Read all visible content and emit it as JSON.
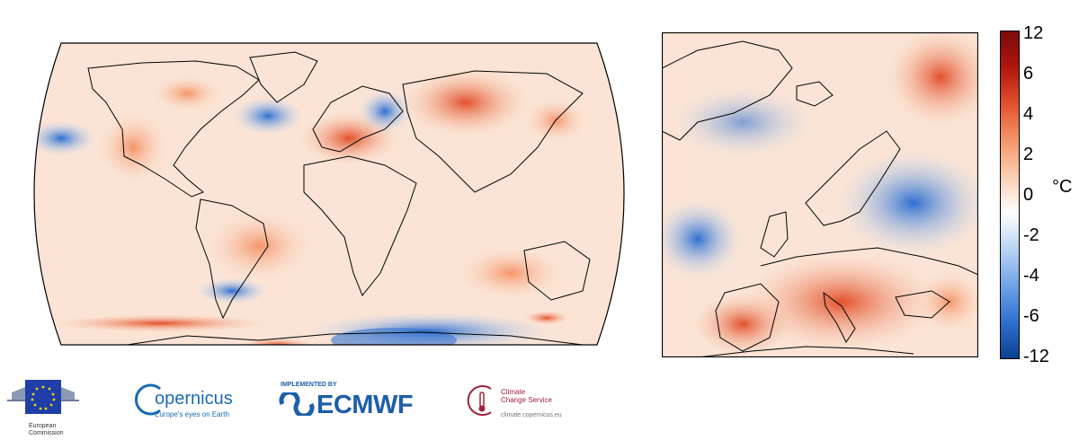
{
  "colorbar": {
    "ticks": [
      "12",
      "6",
      "4",
      "2",
      "0",
      "-2",
      "-4",
      "-6",
      "-12"
    ],
    "unit": "°C",
    "colors": [
      "#0b3f8f",
      "#2e6fd0",
      "#6fa3e6",
      "#b9d3f4",
      "#ffffff",
      "#fbcfb4",
      "#f5956a",
      "#e2502c",
      "#b3140f",
      "#7a0a0a"
    ]
  },
  "logos": {
    "eu": {
      "line1": "European",
      "line2": "Commission"
    },
    "copernicus": {
      "name": "opernicus",
      "tagline": "Europe's eyes on Earth"
    },
    "ecmwf": {
      "pre": "IMPLEMENTED BY",
      "name": "ECMWF"
    },
    "c3s": {
      "line1": "Climate",
      "line2": "Change Service",
      "url": "climate.copernicus.eu"
    }
  }
}
